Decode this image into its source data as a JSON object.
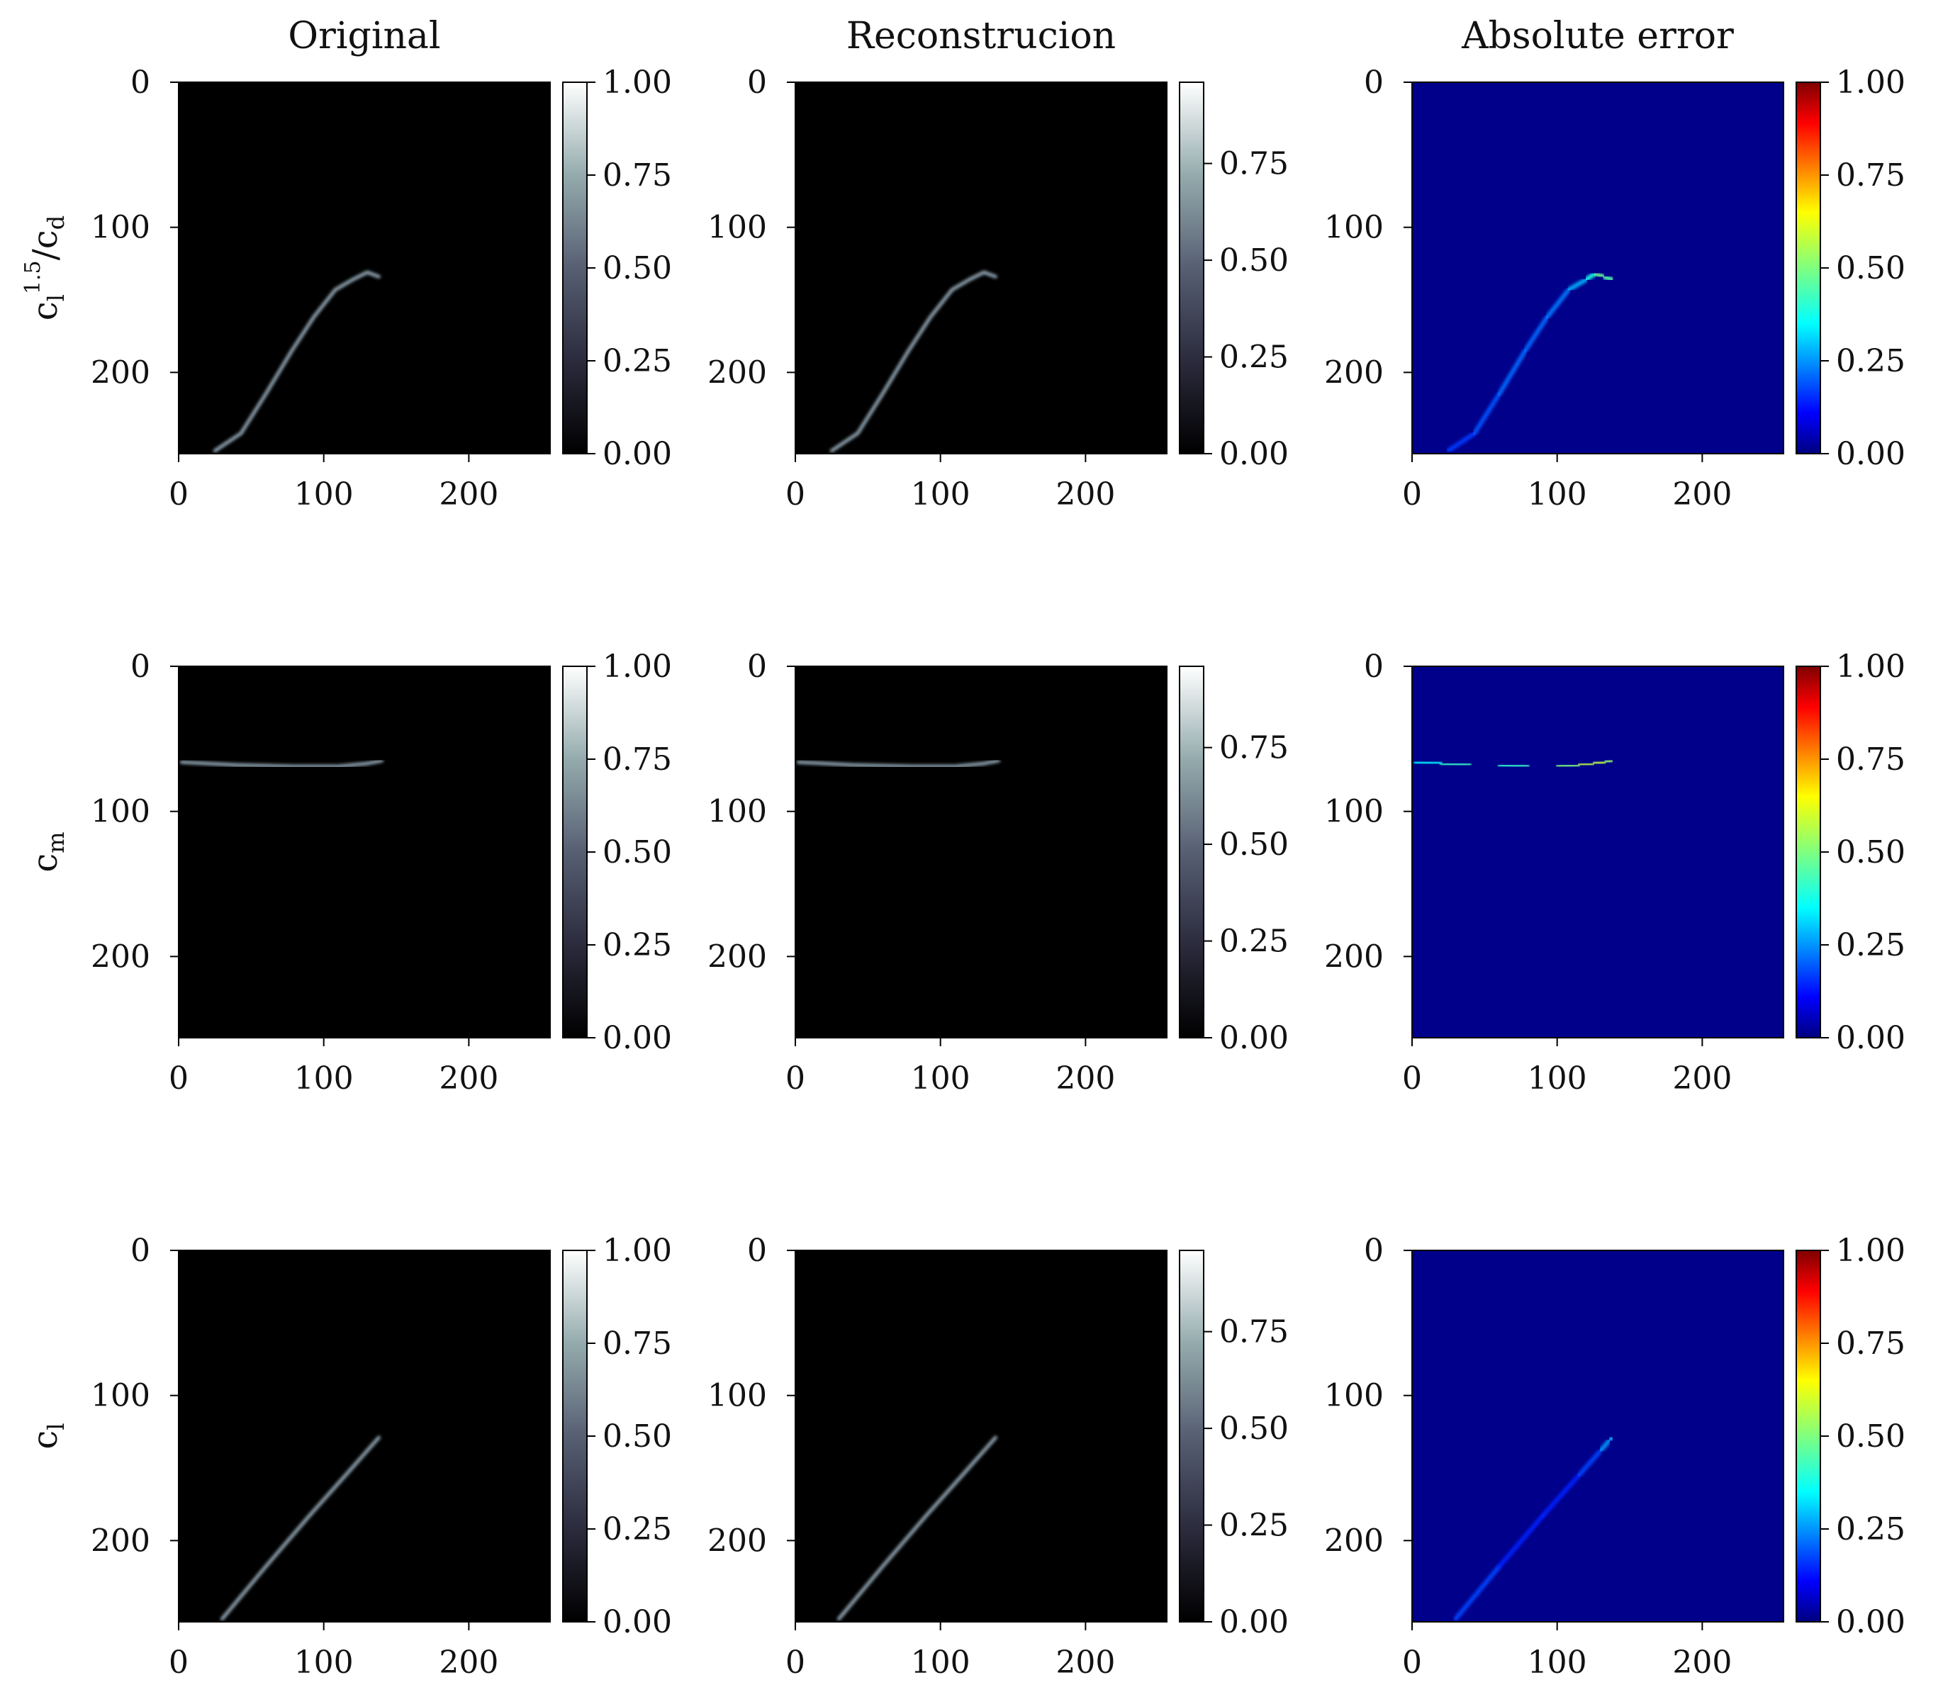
{
  "chart_data": {
    "type": "heatmap",
    "layout": {
      "rows": 3,
      "cols": 3
    },
    "column_titles": [
      "Original",
      "Reconstrucion",
      "Absolute error"
    ],
    "row_labels": [
      {
        "base": "c",
        "sub": "l",
        "sup": "1.5",
        "slash": "/",
        "base2": "c",
        "sub2": "d"
      },
      {
        "base": "c",
        "sub": "m"
      },
      {
        "base": "c",
        "sub": "l"
      }
    ],
    "image_axes": {
      "xlim": [
        0,
        256
      ],
      "ylim": [
        256,
        0
      ],
      "x_ticks": [
        0,
        100,
        200
      ],
      "y_ticks": [
        0,
        100,
        200
      ],
      "x_tick_labels": [
        "0",
        "100",
        "200"
      ],
      "y_tick_labels": [
        "0",
        "100",
        "200"
      ]
    },
    "colorbars": {
      "original": {
        "cmap": "bone",
        "range": [
          0,
          1.0
        ],
        "ticks": [
          0,
          0.25,
          0.5,
          0.75,
          1.0
        ],
        "tick_labels": [
          "0.00",
          "0.25",
          "0.50",
          "0.75",
          "1.00"
        ]
      },
      "reconstruction": {
        "cmap": "bone",
        "range": [
          0,
          0.96
        ],
        "ticks": [
          0,
          0.25,
          0.5,
          0.75
        ],
        "tick_labels": [
          "0.00",
          "0.25",
          "0.50",
          "0.75"
        ]
      },
      "error": {
        "cmap": "jet",
        "range": [
          0,
          1.0
        ],
        "ticks": [
          0,
          0.25,
          0.5,
          0.75,
          1.0
        ],
        "tick_labels": [
          "0.00",
          "0.25",
          "0.50",
          "0.75",
          "1.00"
        ]
      }
    },
    "colors": {
      "background_bone": "#000000",
      "curve_bone": "#8fa3b0",
      "background_jet": "#00008b"
    },
    "curves": [
      [
        [
          25,
          254
        ],
        [
          43,
          242
        ],
        [
          60,
          215
        ],
        [
          78,
          185
        ],
        [
          93,
          162
        ],
        [
          108,
          143
        ],
        [
          120,
          136
        ],
        [
          130,
          131
        ],
        [
          138,
          134
        ]
      ],
      [
        [
          2,
          66
        ],
        [
          40,
          68
        ],
        [
          80,
          69
        ],
        [
          110,
          69
        ],
        [
          130,
          67
        ],
        [
          140,
          65
        ]
      ],
      [
        [
          30,
          254
        ],
        [
          60,
          218
        ],
        [
          90,
          183
        ],
        [
          115,
          155
        ],
        [
          138,
          129
        ]
      ]
    ],
    "error_profiles": [
      [
        [
          25,
          254,
          0.15
        ],
        [
          43,
          242,
          0.18
        ],
        [
          60,
          215,
          0.2
        ],
        [
          78,
          185,
          0.22
        ],
        [
          93,
          162,
          0.2
        ],
        [
          108,
          143,
          0.25
        ],
        [
          120,
          136,
          0.3
        ],
        [
          126,
          132,
          0.45
        ],
        [
          132,
          134,
          0.5
        ],
        [
          138,
          136,
          0.4
        ]
      ],
      [
        [
          2,
          66,
          0.3
        ],
        [
          20,
          67,
          0.38
        ],
        [
          40,
          68,
          0.45
        ],
        [
          60,
          68,
          0.42
        ],
        [
          80,
          69,
          0.4
        ],
        [
          100,
          69,
          0.45
        ],
        [
          115,
          68,
          0.55
        ],
        [
          125,
          67,
          0.6
        ],
        [
          133,
          66,
          0.55
        ],
        [
          138,
          65,
          0.5
        ]
      ],
      [
        [
          30,
          254,
          0.2
        ],
        [
          60,
          218,
          0.15
        ],
        [
          90,
          183,
          0.13
        ],
        [
          115,
          155,
          0.15
        ],
        [
          130,
          138,
          0.2
        ],
        [
          136,
          131,
          0.3
        ],
        [
          138,
          129,
          0.25
        ]
      ]
    ]
  }
}
